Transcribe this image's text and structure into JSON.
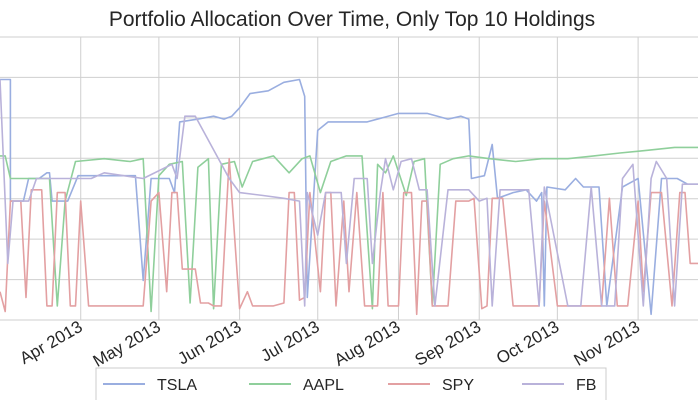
{
  "chart_data": {
    "type": "line",
    "title": "Portfolio Allocation Over Time, Only Top 10 Holdings",
    "xlabel": "",
    "ylabel": "",
    "x_range": [
      "2013-03-01",
      "2013-11-24"
    ],
    "y_range": [
      0,
      1
    ],
    "grid": true,
    "legend_placement": "bottom",
    "x_tick_labels": [
      "Apr 2013",
      "May 2013",
      "Jun 2013",
      "Jul 2013",
      "Aug 2013",
      "Sep 2013",
      "Oct 2013",
      "Nov 2013"
    ],
    "x_ticks": [
      "2013-04-01",
      "2013-05-01",
      "2013-06-01",
      "2013-07-01",
      "2013-08-01",
      "2013-09-01",
      "2013-10-01",
      "2013-11-01"
    ],
    "series": [
      {
        "name": "TSLA",
        "color": "#9aaee0",
        "points": [
          [
            "2013-03-01",
            0.85
          ],
          [
            "2013-03-05",
            0.85
          ],
          [
            "2013-03-05",
            0.42
          ],
          [
            "2013-03-10",
            0.42
          ],
          [
            "2013-03-12",
            0.5
          ],
          [
            "2013-03-16",
            0.5
          ],
          [
            "2013-03-19",
            0.52
          ],
          [
            "2013-03-20",
            0.52
          ],
          [
            "2013-03-21",
            0.42
          ],
          [
            "2013-03-27",
            0.42
          ],
          [
            "2013-03-31",
            0.51
          ],
          [
            "2013-04-12",
            0.51
          ],
          [
            "2013-04-22",
            0.51
          ],
          [
            "2013-04-25",
            0.14
          ],
          [
            "2013-04-28",
            0.5
          ],
          [
            "2013-05-05",
            0.5
          ],
          [
            "2013-05-07",
            0.45
          ],
          [
            "2013-05-09",
            0.7
          ],
          [
            "2013-05-16",
            0.71
          ],
          [
            "2013-05-22",
            0.72
          ],
          [
            "2013-05-26",
            0.71
          ],
          [
            "2013-05-29",
            0.72
          ],
          [
            "2013-06-01",
            0.75
          ],
          [
            "2013-06-05",
            0.8
          ],
          [
            "2013-06-12",
            0.81
          ],
          [
            "2013-06-18",
            0.84
          ],
          [
            "2013-06-24",
            0.85
          ],
          [
            "2013-06-26",
            0.79
          ],
          [
            "2013-06-27",
            0.08
          ],
          [
            "2013-07-01",
            0.67
          ],
          [
            "2013-07-05",
            0.7
          ],
          [
            "2013-07-20",
            0.7
          ],
          [
            "2013-08-01",
            0.73
          ],
          [
            "2013-08-12",
            0.73
          ],
          [
            "2013-08-20",
            0.71
          ],
          [
            "2013-08-25",
            0.72
          ],
          [
            "2013-08-28",
            0.71
          ],
          [
            "2013-08-29",
            0.5
          ],
          [
            "2013-09-03",
            0.51
          ],
          [
            "2013-09-06",
            0.62
          ],
          [
            "2013-09-08",
            0.43
          ],
          [
            "2013-09-14",
            0.45
          ],
          [
            "2013-09-19",
            0.46
          ],
          [
            "2013-09-23",
            0.42
          ],
          [
            "2013-09-25",
            0.45
          ],
          [
            "2013-09-26",
            0.05
          ],
          [
            "2013-09-27",
            0.47
          ],
          [
            "2013-10-04",
            0.46
          ],
          [
            "2013-10-08",
            0.5
          ],
          [
            "2013-10-11",
            0.47
          ],
          [
            "2013-10-17",
            0.47
          ],
          [
            "2013-10-20",
            0.05
          ],
          [
            "2013-10-26",
            0.47
          ],
          [
            "2013-11-01",
            0.5
          ],
          [
            "2013-11-06",
            0.02
          ],
          [
            "2013-11-10",
            0.5
          ],
          [
            "2013-11-16",
            0.5
          ],
          [
            "2013-11-20",
            0.48
          ],
          [
            "2013-11-24",
            0.48
          ]
        ]
      },
      {
        "name": "AAPL",
        "color": "#8fcf9b",
        "points": [
          [
            "2013-03-01",
            0.58
          ],
          [
            "2013-03-03",
            0.58
          ],
          [
            "2013-03-05",
            0.5
          ],
          [
            "2013-03-20",
            0.5
          ],
          [
            "2013-03-23",
            0.05
          ],
          [
            "2013-03-26",
            0.42
          ],
          [
            "2013-03-30",
            0.56
          ],
          [
            "2013-04-10",
            0.57
          ],
          [
            "2013-04-20",
            0.56
          ],
          [
            "2013-04-25",
            0.57
          ],
          [
            "2013-04-28",
            0.03
          ],
          [
            "2013-05-01",
            0.51
          ],
          [
            "2013-05-05",
            0.55
          ],
          [
            "2013-05-10",
            0.56
          ],
          [
            "2013-05-13",
            0.06
          ],
          [
            "2013-05-16",
            0.54
          ],
          [
            "2013-05-20",
            0.57
          ],
          [
            "2013-05-22",
            0.04
          ],
          [
            "2013-05-25",
            0.55
          ],
          [
            "2013-05-30",
            0.56
          ],
          [
            "2013-06-02",
            0.47
          ],
          [
            "2013-06-06",
            0.56
          ],
          [
            "2013-06-10",
            0.57
          ],
          [
            "2013-06-14",
            0.58
          ],
          [
            "2013-06-20",
            0.52
          ],
          [
            "2013-06-25",
            0.57
          ],
          [
            "2013-06-28",
            0.58
          ],
          [
            "2013-07-02",
            0.45
          ],
          [
            "2013-07-06",
            0.56
          ],
          [
            "2013-07-12",
            0.58
          ],
          [
            "2013-07-18",
            0.58
          ],
          [
            "2013-07-22",
            0.04
          ],
          [
            "2013-07-24",
            0.55
          ],
          [
            "2013-07-27",
            0.52
          ],
          [
            "2013-07-30",
            0.58
          ],
          [
            "2013-08-04",
            0.44
          ],
          [
            "2013-08-07",
            0.56
          ],
          [
            "2013-08-11",
            0.57
          ],
          [
            "2013-08-14",
            0.05
          ],
          [
            "2013-08-17",
            0.55
          ],
          [
            "2013-08-22",
            0.57
          ],
          [
            "2013-08-28",
            0.58
          ],
          [
            "2013-09-05",
            0.57
          ],
          [
            "2013-09-15",
            0.56
          ],
          [
            "2013-09-25",
            0.57
          ],
          [
            "2013-10-05",
            0.57
          ],
          [
            "2013-10-15",
            0.58
          ],
          [
            "2013-10-25",
            0.59
          ],
          [
            "2013-11-05",
            0.6
          ],
          [
            "2013-11-15",
            0.61
          ],
          [
            "2013-11-24",
            0.61
          ]
        ]
      },
      {
        "name": "SPY",
        "color": "#e3a0a2",
        "points": [
          [
            "2013-03-01",
            0.1
          ],
          [
            "2013-03-03",
            0.03
          ],
          [
            "2013-03-05",
            0.42
          ],
          [
            "2013-03-09",
            0.42
          ],
          [
            "2013-03-11",
            0.08
          ],
          [
            "2013-03-13",
            0.46
          ],
          [
            "2013-03-17",
            0.46
          ],
          [
            "2013-03-19",
            0.05
          ],
          [
            "2013-03-21",
            0.05
          ],
          [
            "2013-03-23",
            0.45
          ],
          [
            "2013-03-26",
            0.45
          ],
          [
            "2013-03-28",
            0.05
          ],
          [
            "2013-03-30",
            0.05
          ],
          [
            "2013-04-01",
            0.42
          ],
          [
            "2013-04-04",
            0.05
          ],
          [
            "2013-04-10",
            0.05
          ],
          [
            "2013-04-20",
            0.05
          ],
          [
            "2013-04-25",
            0.05
          ],
          [
            "2013-04-28",
            0.42
          ],
          [
            "2013-05-01",
            0.45
          ],
          [
            "2013-05-04",
            0.1
          ],
          [
            "2013-05-06",
            0.45
          ],
          [
            "2013-05-08",
            0.45
          ],
          [
            "2013-05-10",
            0.18
          ],
          [
            "2013-05-15",
            0.18
          ],
          [
            "2013-05-17",
            0.06
          ],
          [
            "2013-05-20",
            0.06
          ],
          [
            "2013-05-22",
            0.05
          ],
          [
            "2013-05-25",
            0.05
          ],
          [
            "2013-05-28",
            0.57
          ],
          [
            "2013-06-01",
            0.04
          ],
          [
            "2013-06-04",
            0.1
          ],
          [
            "2013-06-06",
            0.05
          ],
          [
            "2013-06-10",
            0.05
          ],
          [
            "2013-06-14",
            0.05
          ],
          [
            "2013-06-18",
            0.06
          ],
          [
            "2013-06-20",
            0.45
          ],
          [
            "2013-06-22",
            0.45
          ],
          [
            "2013-06-24",
            0.07
          ],
          [
            "2013-06-26",
            0.08
          ],
          [
            "2013-06-28",
            0.45
          ],
          [
            "2013-07-02",
            0.1
          ],
          [
            "2013-07-04",
            0.45
          ],
          [
            "2013-07-06",
            0.45
          ],
          [
            "2013-07-08",
            0.05
          ],
          [
            "2013-07-11",
            0.42
          ],
          [
            "2013-07-13",
            0.1
          ],
          [
            "2013-07-16",
            0.45
          ],
          [
            "2013-07-19",
            0.05
          ],
          [
            "2013-07-24",
            0.05
          ],
          [
            "2013-07-26",
            0.45
          ],
          [
            "2013-07-28",
            0.05
          ],
          [
            "2013-08-01",
            0.05
          ],
          [
            "2013-08-03",
            0.45
          ],
          [
            "2013-08-06",
            0.45
          ],
          [
            "2013-08-08",
            0.02
          ],
          [
            "2013-08-10",
            0.42
          ],
          [
            "2013-08-12",
            0.42
          ],
          [
            "2013-08-14",
            0.05
          ],
          [
            "2013-08-20",
            0.05
          ],
          [
            "2013-08-23",
            0.42
          ],
          [
            "2013-08-28",
            0.42
          ],
          [
            "2013-08-30",
            0.43
          ],
          [
            "2013-09-02",
            0.04
          ],
          [
            "2013-09-04",
            0.05
          ],
          [
            "2013-09-06",
            0.43
          ],
          [
            "2013-09-10",
            0.43
          ],
          [
            "2013-09-14",
            0.05
          ],
          [
            "2013-09-20",
            0.05
          ],
          [
            "2013-09-24",
            0.05
          ],
          [
            "2013-09-26",
            0.42
          ],
          [
            "2013-10-01",
            0.05
          ],
          [
            "2013-10-08",
            0.05
          ],
          [
            "2013-10-14",
            0.05
          ],
          [
            "2013-10-18",
            0.05
          ],
          [
            "2013-10-21",
            0.43
          ],
          [
            "2013-10-24",
            0.05
          ],
          [
            "2013-10-28",
            0.05
          ],
          [
            "2013-11-01",
            0.42
          ],
          [
            "2013-11-03",
            0.1
          ],
          [
            "2013-11-06",
            0.45
          ],
          [
            "2013-11-10",
            0.45
          ],
          [
            "2013-11-14",
            0.05
          ],
          [
            "2013-11-17",
            0.45
          ],
          [
            "2013-11-19",
            0.45
          ],
          [
            "2013-11-21",
            0.2
          ],
          [
            "2013-11-24",
            0.2
          ]
        ]
      },
      {
        "name": "FB",
        "color": "#b9b2da",
        "points": [
          [
            "2013-03-01",
            0.85
          ],
          [
            "2013-03-04",
            0.2
          ],
          [
            "2013-03-06",
            0.42
          ],
          [
            "2013-03-12",
            0.42
          ],
          [
            "2013-03-15",
            0.5
          ],
          [
            "2013-03-25",
            0.5
          ],
          [
            "2013-04-05",
            0.5
          ],
          [
            "2013-04-10",
            0.52
          ],
          [
            "2013-04-25",
            0.5
          ],
          [
            "2013-05-06",
            0.55
          ],
          [
            "2013-05-08",
            0.5
          ],
          [
            "2013-05-11",
            0.72
          ],
          [
            "2013-05-15",
            0.72
          ],
          [
            "2013-05-28",
            0.5
          ],
          [
            "2013-06-01",
            0.45
          ],
          [
            "2013-06-10",
            0.44
          ],
          [
            "2013-06-18",
            0.43
          ],
          [
            "2013-06-24",
            0.42
          ],
          [
            "2013-06-26",
            0.05
          ],
          [
            "2013-06-27",
            0.45
          ],
          [
            "2013-07-01",
            0.3
          ],
          [
            "2013-07-04",
            0.45
          ],
          [
            "2013-07-10",
            0.45
          ],
          [
            "2013-07-12",
            0.2
          ],
          [
            "2013-07-15",
            0.5
          ],
          [
            "2013-07-20",
            0.5
          ],
          [
            "2013-07-22",
            0.2
          ],
          [
            "2013-07-25",
            0.45
          ],
          [
            "2013-07-27",
            0.57
          ],
          [
            "2013-07-30",
            0.46
          ],
          [
            "2013-08-02",
            0.56
          ],
          [
            "2013-08-06",
            0.57
          ],
          [
            "2013-08-09",
            0.46
          ],
          [
            "2013-08-12",
            0.46
          ],
          [
            "2013-08-15",
            0.05
          ],
          [
            "2013-08-20",
            0.46
          ],
          [
            "2013-08-28",
            0.46
          ],
          [
            "2013-09-01",
            0.42
          ],
          [
            "2013-09-04",
            0.43
          ],
          [
            "2013-09-06",
            0.05
          ],
          [
            "2013-09-09",
            0.46
          ],
          [
            "2013-09-20",
            0.46
          ],
          [
            "2013-09-24",
            0.05
          ],
          [
            "2013-09-26",
            0.47
          ],
          [
            "2013-10-05",
            0.05
          ],
          [
            "2013-10-10",
            0.05
          ],
          [
            "2013-10-14",
            0.47
          ],
          [
            "2013-10-18",
            0.05
          ],
          [
            "2013-10-23",
            0.05
          ],
          [
            "2013-10-26",
            0.5
          ],
          [
            "2013-10-30",
            0.55
          ],
          [
            "2013-11-03",
            0.05
          ],
          [
            "2013-11-06",
            0.5
          ],
          [
            "2013-11-08",
            0.56
          ],
          [
            "2013-11-12",
            0.5
          ],
          [
            "2013-11-15",
            0.05
          ],
          [
            "2013-11-18",
            0.48
          ],
          [
            "2013-11-24",
            0.48
          ]
        ]
      }
    ]
  }
}
